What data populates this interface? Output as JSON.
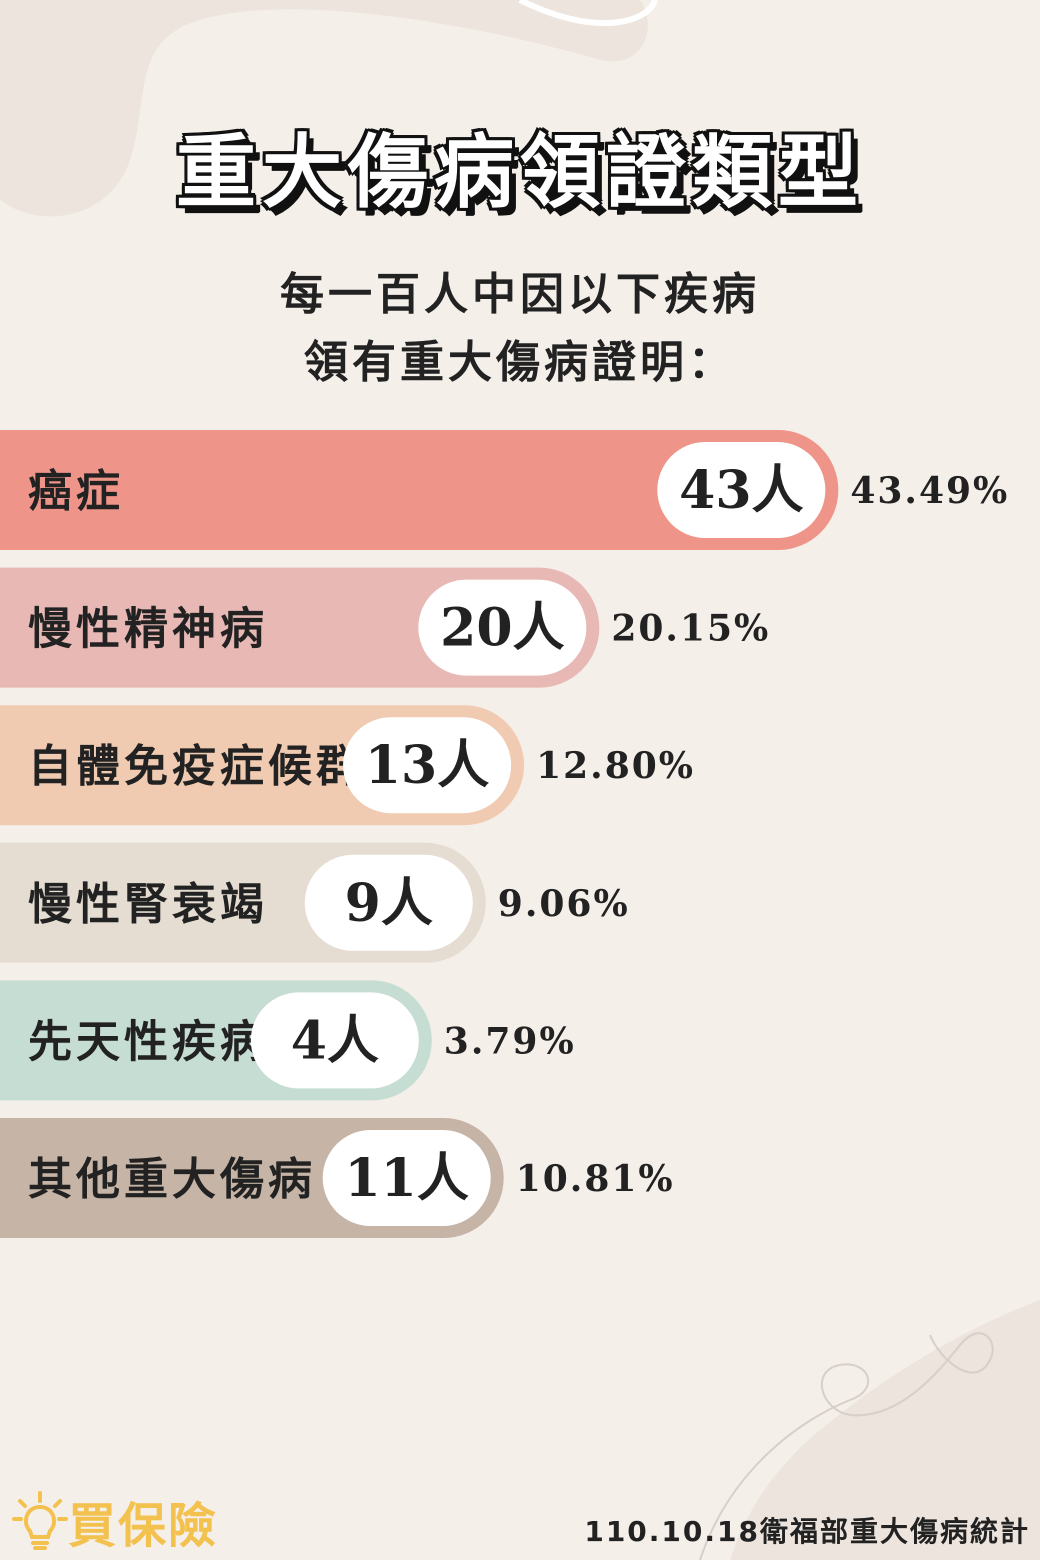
{
  "title": "重大傷病領證類型",
  "subtitle_line1": "每一百人中因以下疾病",
  "subtitle_line2": "領有重大傷病證明：",
  "brand": {
    "name": "買保險",
    "icon": "lightbulb-icon"
  },
  "source": "110.10.18衛福部重大傷病統計",
  "colors": {
    "background": "#f5efea",
    "bars": [
      "#ef9488",
      "#e7b8b4",
      "#f0cbb2",
      "#e6ddd2",
      "#c6ddd3",
      "#c6b4a6"
    ],
    "brand": "#f2c14e"
  },
  "chart_data": {
    "type": "bar",
    "orientation": "horizontal",
    "categories": [
      "癌症",
      "慢性精神病",
      "自體免疫症候群",
      "慢性腎衰竭",
      "先天性疾病",
      "其他重大傷病"
    ],
    "counts": [
      43,
      20,
      13,
      9,
      4,
      11
    ],
    "count_labels": [
      "43人",
      "20人",
      "13人",
      "9人",
      "4人",
      "11人"
    ],
    "values": [
      43.49,
      20.15,
      12.8,
      9.06,
      3.79,
      10.81
    ],
    "value_labels": [
      "43.49%",
      "20.15%",
      "12.80%",
      "9.06%",
      "3.79%",
      "10.81%"
    ]
  }
}
